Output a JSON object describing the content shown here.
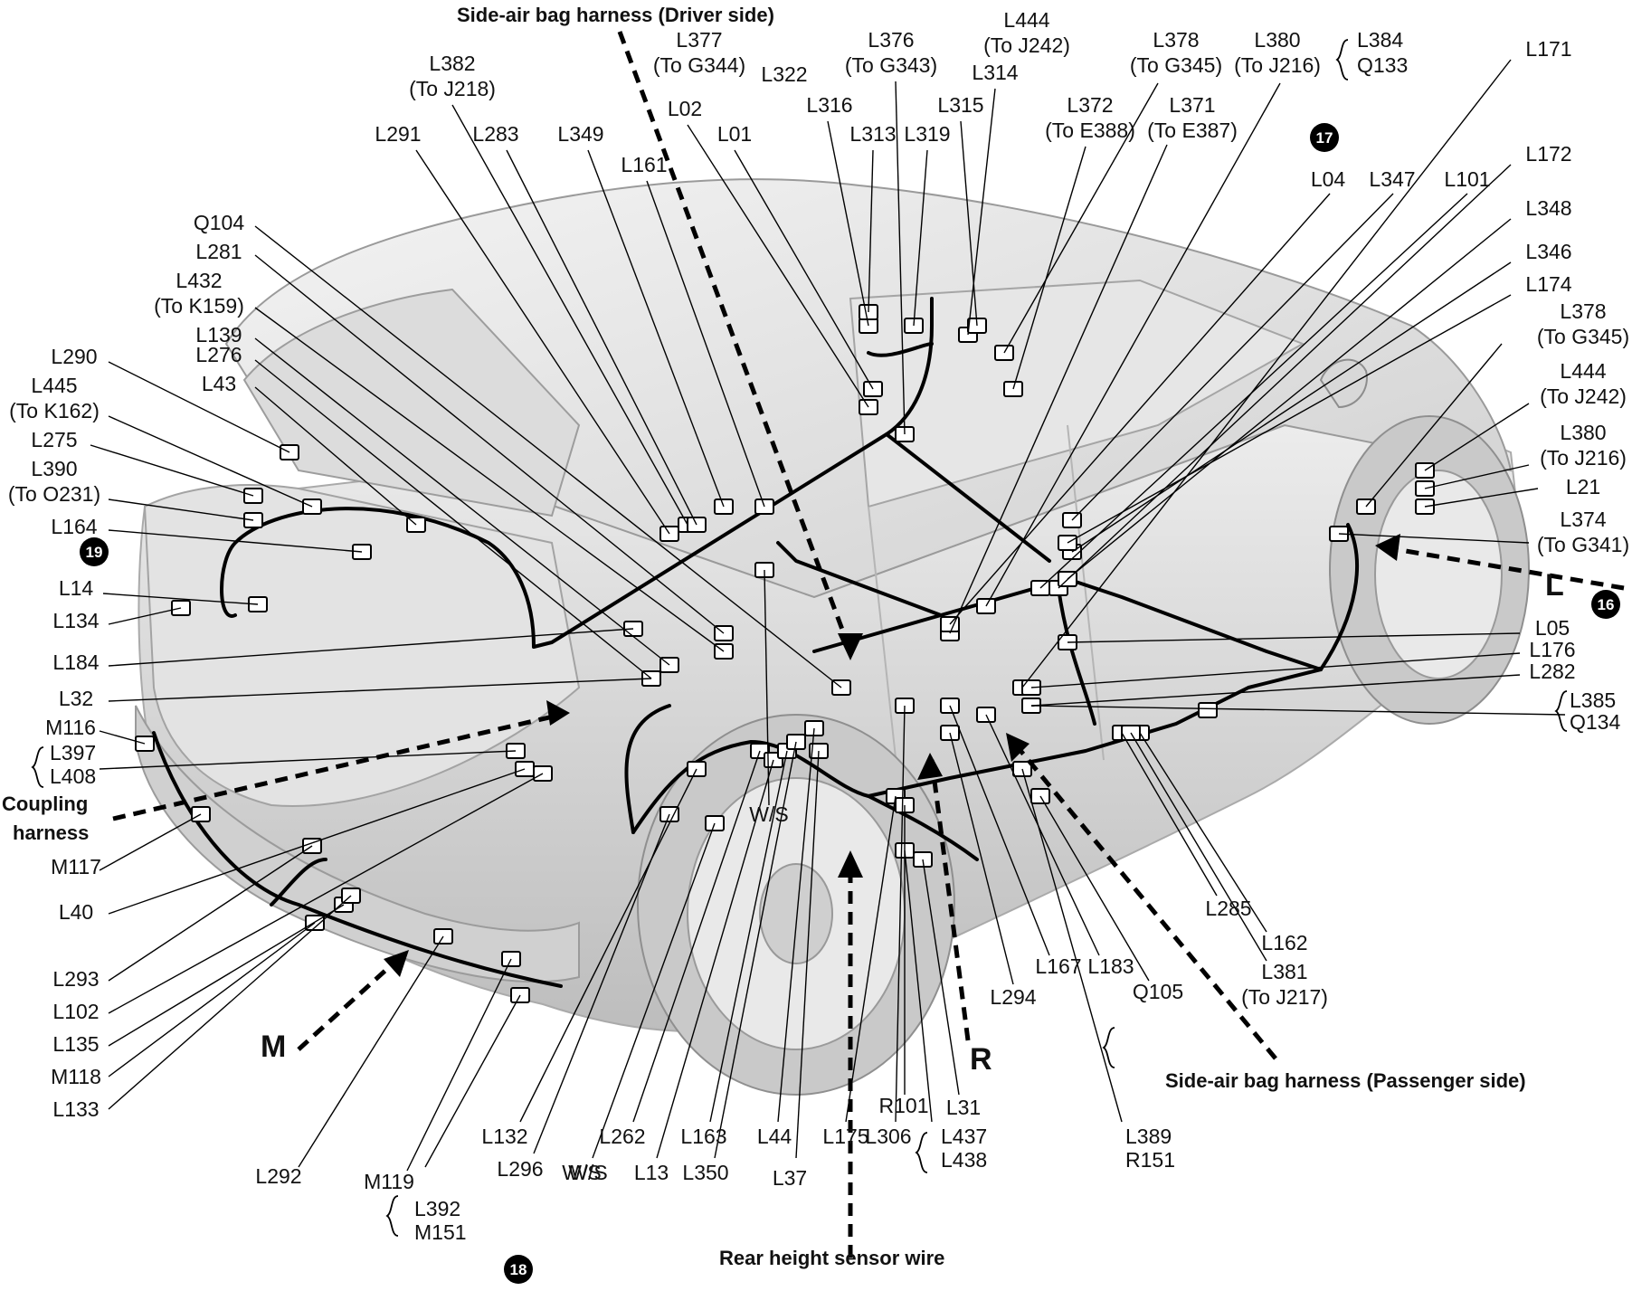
{
  "callouts": {
    "side_airbag_driver": "Side-air bag harness (Driver side)",
    "side_airbag_passenger": "Side-air bag harness (Passenger side)",
    "coupling_1": "Coupling",
    "coupling_2": "harness",
    "rear_height": "Rear height sensor wire",
    "view_l": "L",
    "view_m": "M",
    "view_r": "R"
  },
  "badges": [
    "16",
    "17",
    "18",
    "19"
  ],
  "connectors": [
    "L377",
    "(To G344)",
    "L382",
    "(To J218)",
    "L291",
    "L283",
    "L349",
    "L161",
    "L02",
    "L01",
    "L322",
    "L316",
    "L376",
    "(To G343)",
    "L313",
    "L319",
    "L444",
    "(To J242)",
    "L314",
    "L315",
    "L378",
    "(To G345)",
    "L372",
    "(To E388)",
    "L371",
    "(To E387)",
    "L380",
    "(To J216)",
    "L384",
    "Q133",
    "L171",
    "L04",
    "L347",
    "L101",
    "L172",
    "L348",
    "L346",
    "L174",
    "L378",
    "(To G345)",
    "L444",
    "(To J242)",
    "L380",
    "(To J216)",
    "L21",
    "L374",
    "(To G341)",
    "L05",
    "L176",
    "L282",
    "L385",
    "Q134",
    "Q104",
    "L281",
    "L432",
    "(To K159)",
    "L139",
    "L276",
    "L43",
    "L290",
    "L445",
    "(To K162)",
    "L275",
    "L390",
    "(To O231)",
    "L164",
    "L14",
    "L134",
    "L184",
    "L32",
    "M116",
    "L397",
    "L408",
    "M117",
    "L40",
    "L293",
    "L102",
    "L135",
    "M118",
    "L133",
    "L292",
    "M119",
    "L392",
    "M151",
    "L132",
    "L296",
    "W/S",
    "L262",
    "L13",
    "L163",
    "L350",
    "L44",
    "L37",
    "L175",
    "L306",
    "R101",
    "L437",
    "L438",
    "L31",
    "L389",
    "R151",
    "L167",
    "L294",
    "L183",
    "Q105",
    "L285",
    "L162",
    "L381",
    "(To J217)",
    "W/S",
    "W/S"
  ]
}
